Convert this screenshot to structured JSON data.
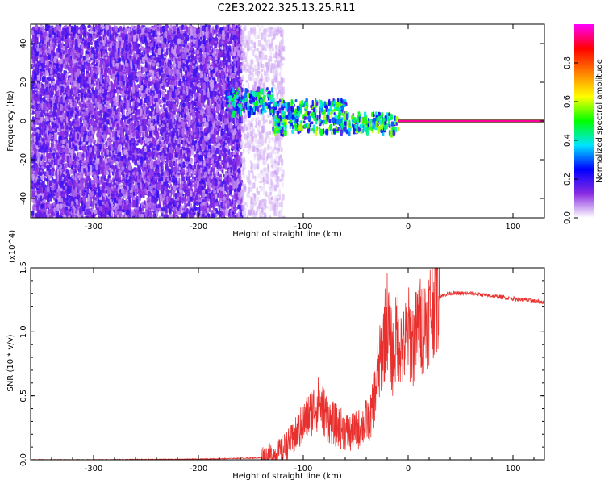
{
  "figure": {
    "title": "C2E3.2022.325.13.25.R11"
  },
  "chart_data": [
    {
      "type": "heatmap",
      "xlabel": "Height of straight line (km)",
      "ylabel": "Frequency (Hz)",
      "xlim": [
        -360,
        130
      ],
      "ylim": [
        -50,
        50
      ],
      "xticks": [
        -300,
        -200,
        -100,
        0,
        100
      ],
      "yticks": [
        -40,
        -20,
        0,
        20,
        40
      ],
      "colorbar": {
        "label": "Normalized spectral amplitude",
        "range": [
          0.0,
          1.0
        ],
        "ticks": [
          "0.0",
          "0.2",
          "0.4",
          "0.6",
          "0.8"
        ],
        "colormap": [
          "#ffffff",
          "#8a2be2",
          "#0000ff",
          "#00e5ff",
          "#00ff00",
          "#ffff00",
          "#ff8000",
          "#ff0000",
          "#ff00ff"
        ]
      },
      "regions": [
        {
          "x": [
            -360,
            -160
          ],
          "y": [
            -50,
            50
          ],
          "value": 0.15
        },
        {
          "x": [
            -160,
            -120
          ],
          "y": [
            -50,
            50
          ],
          "value": 0.05
        },
        {
          "x": [
            -175,
            -130
          ],
          "y": [
            5,
            18
          ],
          "value": 0.4
        },
        {
          "x": [
            -130,
            -60
          ],
          "y": [
            -5,
            12
          ],
          "value": 0.45
        },
        {
          "x": [
            -60,
            -10
          ],
          "y": [
            -5,
            5
          ],
          "value": 0.5
        },
        {
          "x": [
            -10,
            130
          ],
          "y": [
            -1,
            1
          ],
          "value": 0.95
        }
      ],
      "grid": false
    },
    {
      "type": "line",
      "xlabel": "Height of straight line (km)",
      "ylabel": "SNR (10 * v/v)",
      "y_multiplier": "(x10^4)",
      "xlim": [
        -360,
        130
      ],
      "ylim": [
        0,
        1.5
      ],
      "xticks": [
        -300,
        -200,
        -100,
        0,
        100
      ],
      "yticks": [
        "0.0",
        "0.5",
        "1.0",
        "1.5"
      ],
      "series": [
        {
          "color": "#e8312e",
          "x": [
            -360,
            -300,
            -200,
            -140,
            -125,
            -110,
            -95,
            -85,
            -75,
            -65,
            -55,
            -45,
            -35,
            -30,
            -25,
            -20,
            -15,
            -10,
            -5,
            0,
            5,
            10,
            15,
            20,
            25,
            30,
            40,
            60,
            80,
            100,
            130
          ],
          "y": [
            0.0,
            0.0,
            0.005,
            0.015,
            0.04,
            0.15,
            0.35,
            0.45,
            0.3,
            0.25,
            0.2,
            0.25,
            0.35,
            0.6,
            0.85,
            1.1,
            0.8,
            1.0,
            0.85,
            1.0,
            0.9,
            1.05,
            1.05,
            1.15,
            1.25,
            1.28,
            1.3,
            1.3,
            1.28,
            1.26,
            1.23
          ]
        }
      ],
      "grid": false
    }
  ]
}
